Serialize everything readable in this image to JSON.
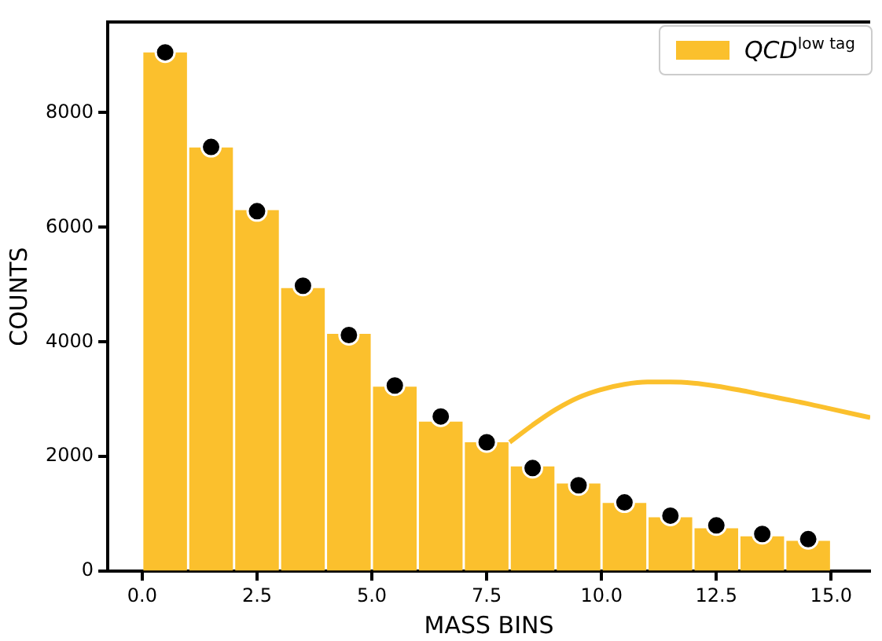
{
  "chart_data": {
    "type": "histogram",
    "xlabel": "MASS BINS",
    "ylabel": "COUNTS",
    "legend": "top right",
    "grid": false,
    "bins": [
      0,
      1,
      2,
      3,
      4,
      5,
      6,
      7,
      8,
      9,
      10,
      11,
      12,
      13,
      14,
      15
    ],
    "xlim": [
      -0.75,
      15.85
    ],
    "ylim": [
      0,
      9580
    ],
    "xticks": [
      {
        "value": 0,
        "label": "0.0"
      },
      {
        "value": 2.5,
        "label": "2.5"
      },
      {
        "value": 5,
        "label": "5.0"
      },
      {
        "value": 7.5,
        "label": "7.5"
      },
      {
        "value": 10,
        "label": "10.0"
      },
      {
        "value": 12.5,
        "label": "12.5"
      },
      {
        "value": 15,
        "label": "15.0"
      }
    ],
    "yticks": [
      0,
      2000,
      4000,
      6000,
      8000
    ],
    "series": [
      {
        "name": "QCD$^{low tag}$",
        "color": "#fbc02d",
        "values": [
          9050,
          7390,
          6300,
          4940,
          4140,
          3220,
          2610,
          2250,
          1830,
          1530,
          1190,
          940,
          750,
          610,
          530
        ]
      },
      {
        "type": "scatter",
        "color": "#000000",
        "marker": "circle",
        "x": [
          0.5,
          1.5,
          2.5,
          3.5,
          4.5,
          5.5,
          6.5,
          7.5,
          8.5,
          9.5,
          10.5,
          11.5,
          12.5,
          13.5,
          14.5
        ],
        "values": [
          9050,
          7400,
          6280,
          4980,
          4120,
          3240,
          2700,
          2250,
          1800,
          1500,
          1200,
          970,
          800,
          650,
          560
        ]
      },
      {
        "type": "line",
        "color": "#fbc02d",
        "x": [
          8,
          8.5,
          9,
          9.5,
          10,
          10.5,
          11,
          11.5,
          12,
          12.5,
          13,
          13.5,
          14,
          14.5,
          15,
          15.85
        ],
        "values": [
          2250,
          2550,
          2820,
          3030,
          3170,
          3260,
          3300,
          3300,
          3280,
          3230,
          3160,
          3080,
          3000,
          2920,
          2830,
          2680
        ]
      }
    ]
  }
}
